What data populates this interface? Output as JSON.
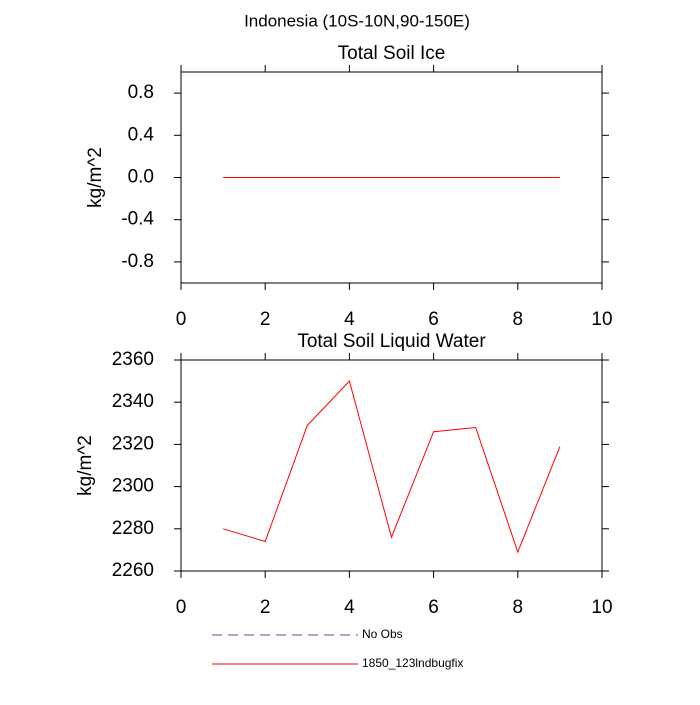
{
  "title": "Indonesia (10S-10N,90-150E)",
  "chart_data": [
    {
      "type": "line",
      "title": "Total Soil Ice",
      "y_label": "kg/m^2",
      "x": [
        1,
        2,
        3,
        4,
        5,
        6,
        7,
        8,
        9
      ],
      "series": [
        {
          "name": "1850_123lndbugfix",
          "color": "#ff0000",
          "values": [
            0,
            0,
            0,
            0,
            0,
            0,
            0,
            0,
            0
          ]
        }
      ],
      "xlim": [
        0,
        10
      ],
      "xticks": [
        0,
        2,
        4,
        6,
        8,
        10
      ],
      "ylim": [
        -1,
        1
      ],
      "yticks": [
        -0.8,
        -0.4,
        {
          "value": 0,
          "label": "0.0"
        },
        0.4,
        0.8
      ]
    },
    {
      "type": "line",
      "title": "Total Soil Liquid Water",
      "y_label": "kg/m^2",
      "x": [
        1,
        2,
        3,
        4,
        5,
        6,
        7,
        8,
        9
      ],
      "series": [
        {
          "name": "No Obs",
          "color": "#4b4bb4",
          "dashed": true,
          "values": [
            null,
            null,
            null,
            null,
            null,
            null,
            null,
            null,
            null
          ]
        },
        {
          "name": "1850_123lndbugfix",
          "color": "#ff0000",
          "values": [
            2280,
            2274,
            2329,
            2350,
            2276,
            2326,
            2328,
            2269,
            2319
          ]
        }
      ],
      "xlim": [
        0,
        10
      ],
      "xticks": [
        0,
        2,
        4,
        6,
        8,
        10
      ],
      "ylim": [
        2260,
        2360
      ],
      "yticks": [
        2260,
        2280,
        2300,
        2320,
        2340,
        2360
      ]
    }
  ]
}
